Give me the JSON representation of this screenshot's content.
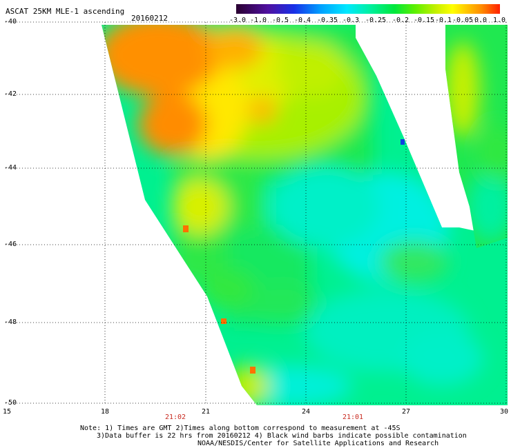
{
  "header": {
    "title": "ASCAT 25KM MLE-1 ascending",
    "date": "20160212"
  },
  "colorbar": {
    "ticks": [
      "-3.0",
      "-1.0",
      "-0.5",
      "-0.4",
      "-0.35",
      "-0.3",
      "-0.25",
      "-0.2",
      "-0.15",
      "-0.1",
      "-0.05",
      "0.0",
      "1.0"
    ],
    "colors": [
      "#2a0030",
      "#5010a0",
      "#1830e8",
      "#00a0ff",
      "#00e8ff",
      "#00f0a8",
      "#00e83c",
      "#60f000",
      "#c8f000",
      "#ffff00",
      "#ffc000",
      "#ff8c00",
      "#ff2000"
    ]
  },
  "axes": {
    "y_ticks": [
      "-40",
      "-42",
      "-44",
      "-46",
      "-48",
      "-50"
    ],
    "x_ticks": [
      "15",
      "18",
      "21",
      "24",
      "27",
      "30"
    ],
    "time_labels": [
      "21:02",
      "21:01"
    ]
  },
  "notes": [
    "Note: 1) Times are GMT 2)Times along bottom correspond to measurement at -45S",
    "3)Data buffer is 22 hrs from 20160212 4) Black wind barbs indicate possible contamination",
    "NOAA/NESDIS/Center for Satellite Applications and Research"
  ]
}
